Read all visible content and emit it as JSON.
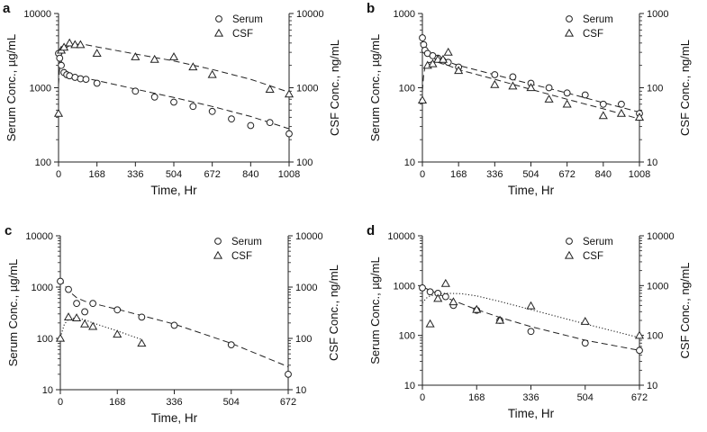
{
  "figure": {
    "panels": [
      "a",
      "b",
      "c",
      "d"
    ],
    "serum_marker": "circle",
    "csf_marker": "triangle",
    "line_color": "#222222"
  },
  "chart_data": [
    {
      "panel_label": "a",
      "type": "scatter",
      "xlabel": "Time, Hr",
      "ylabel_left": "Serum Conc., µg/mL",
      "ylabel_right": "CSF Conc., ng/mL",
      "xlim": [
        0,
        1008
      ],
      "xticks": [
        "0",
        "168",
        "336",
        "504",
        "672",
        "840",
        "1008"
      ],
      "ylim_left": [
        100,
        10000
      ],
      "yticks_left": [
        "100",
        "1000",
        "10000"
      ],
      "ylim_right": [
        100,
        10000
      ],
      "yticks_right": [
        "100",
        "1000",
        "10000"
      ],
      "legend": [
        "Serum",
        "CSF"
      ],
      "series": [
        {
          "name": "Serum",
          "marker": "circle",
          "axis": "left",
          "x": [
            0,
            5,
            12,
            24,
            36,
            48,
            72,
            96,
            120,
            168,
            336,
            420,
            504,
            588,
            672,
            756,
            840,
            924,
            1008
          ],
          "y": [
            2900,
            2500,
            2000,
            1600,
            1500,
            1450,
            1380,
            1320,
            1300,
            1150,
            900,
            750,
            640,
            560,
            480,
            380,
            310,
            340,
            240
          ]
        },
        {
          "name": "CSF",
          "marker": "triangle",
          "axis": "right",
          "x": [
            0,
            12,
            24,
            48,
            72,
            96,
            168,
            336,
            420,
            504,
            588,
            672,
            924,
            1008
          ],
          "y": [
            450,
            3200,
            3500,
            4000,
            3800,
            3800,
            2900,
            2600,
            2400,
            2600,
            1900,
            1500,
            950,
            820
          ]
        }
      ],
      "fits": [
        {
          "name": "Serum fit",
          "style": "dashed",
          "axis": "left",
          "x": [
            0,
            12,
            24,
            48,
            72,
            120,
            168,
            336,
            504,
            672,
            840,
            1008
          ],
          "y": [
            3200,
            2300,
            1800,
            1530,
            1440,
            1340,
            1250,
            960,
            740,
            560,
            410,
            280
          ]
        },
        {
          "name": "CSF fit",
          "style": "dashed",
          "axis": "right",
          "x": [
            0,
            8,
            24,
            48,
            72,
            96,
            120,
            168,
            336,
            504,
            672,
            840,
            1008
          ],
          "y": [
            1100,
            2600,
            3300,
            3700,
            3850,
            3850,
            3800,
            3550,
            2850,
            2300,
            1760,
            1300,
            870
          ]
        }
      ]
    },
    {
      "panel_label": "b",
      "type": "scatter",
      "xlabel": "Time, Hr",
      "ylabel_left": "Serum Conc., µg/mL",
      "ylabel_right": "CSF Conc., ng/mL",
      "xlim": [
        0,
        1008
      ],
      "xticks": [
        "0",
        "168",
        "336",
        "504",
        "672",
        "840",
        "1008"
      ],
      "ylim_left": [
        10,
        1000
      ],
      "yticks_left": [
        "10",
        "100",
        "1000"
      ],
      "ylim_right": [
        10,
        1000
      ],
      "yticks_right": [
        "10",
        "100",
        "1000"
      ],
      "legend": [
        "Serum",
        "CSF"
      ],
      "series": [
        {
          "name": "Serum",
          "marker": "circle",
          "axis": "left",
          "x": [
            0,
            6,
            12,
            24,
            48,
            72,
            96,
            120,
            168,
            336,
            420,
            504,
            588,
            672,
            756,
            840,
            924,
            1008
          ],
          "y": [
            470,
            380,
            320,
            290,
            270,
            250,
            230,
            220,
            190,
            150,
            140,
            115,
            100,
            85,
            80,
            60,
            60,
            45
          ]
        },
        {
          "name": "CSF",
          "marker": "triangle",
          "axis": "right",
          "x": [
            0,
            24,
            48,
            72,
            96,
            120,
            168,
            336,
            420,
            504,
            588,
            672,
            840,
            924,
            1008
          ],
          "y": [
            68,
            200,
            210,
            240,
            240,
            300,
            170,
            110,
            105,
            100,
            70,
            60,
            42,
            45,
            40
          ]
        }
      ],
      "fits": [
        {
          "name": "Serum fit",
          "style": "dashed",
          "axis": "left",
          "x": [
            0,
            12,
            24,
            48,
            96,
            168,
            336,
            504,
            672,
            840,
            1008
          ],
          "y": [
            420,
            330,
            290,
            260,
            235,
            200,
            150,
            112,
            85,
            63,
            47
          ]
        },
        {
          "name": "CSF fit",
          "style": "dashed",
          "axis": "right",
          "x": [
            0,
            6,
            12,
            24,
            48,
            72,
            120,
            168,
            336,
            504,
            672,
            840,
            1008
          ],
          "y": [
            90,
            150,
            190,
            215,
            225,
            220,
            200,
            175,
            130,
            95,
            70,
            52,
            38
          ]
        }
      ]
    },
    {
      "panel_label": "c",
      "type": "scatter",
      "xlabel": "Time, Hr",
      "ylabel_left": "Serum Conc., µg/mL",
      "ylabel_right": "CSF Conc., ng/mL",
      "xlim": [
        0,
        672
      ],
      "xticks": [
        "0",
        "168",
        "336",
        "504",
        "672"
      ],
      "ylim_left": [
        10,
        10000
      ],
      "yticks_left": [
        "10",
        "100",
        "1000",
        "10000"
      ],
      "ylim_right": [
        10,
        10000
      ],
      "yticks_right": [
        "10",
        "100",
        "1000",
        "10000"
      ],
      "legend": [
        "Serum",
        "CSF"
      ],
      "series": [
        {
          "name": "Serum",
          "marker": "circle",
          "axis": "left",
          "x": [
            0,
            24,
            48,
            72,
            96,
            168,
            240,
            336,
            504,
            672
          ],
          "y": [
            1300,
            900,
            480,
            330,
            480,
            360,
            260,
            180,
            75,
            20
          ]
        },
        {
          "name": "CSF",
          "marker": "triangle",
          "axis": "right",
          "x": [
            0,
            24,
            48,
            72,
            96,
            168,
            240
          ],
          "y": [
            100,
            260,
            250,
            190,
            170,
            120,
            80
          ]
        }
      ],
      "fits": [
        {
          "name": "Serum fit",
          "style": "dashed",
          "axis": "left",
          "x": [
            0,
            12,
            24,
            48,
            72,
            120,
            168,
            336,
            504,
            672
          ],
          "y": [
            1500,
            1100,
            850,
            620,
            530,
            440,
            370,
            190,
            80,
            28
          ]
        },
        {
          "name": "CSF fit",
          "style": "dotted",
          "axis": "right",
          "x": [
            0,
            12,
            24,
            48,
            72,
            96,
            168,
            240
          ],
          "y": [
            105,
            190,
            235,
            250,
            230,
            200,
            140,
            95
          ]
        }
      ]
    },
    {
      "panel_label": "d",
      "type": "scatter",
      "xlabel": "Time, Hr",
      "ylabel_left": "Serum Conc., µg/mL",
      "ylabel_right": "CSF Conc., ng/mL",
      "xlim": [
        0,
        672
      ],
      "xticks": [
        "0",
        "168",
        "336",
        "504",
        "672"
      ],
      "ylim_left": [
        10,
        10000
      ],
      "yticks_left": [
        "10",
        "100",
        "1000",
        "10000"
      ],
      "ylim_right": [
        10,
        10000
      ],
      "yticks_right": [
        "10",
        "100",
        "1000",
        "10000"
      ],
      "legend": [
        "Serum",
        "CSF"
      ],
      "series": [
        {
          "name": "Serum",
          "marker": "circle",
          "axis": "left",
          "x": [
            0,
            24,
            48,
            72,
            96,
            168,
            240,
            336,
            504,
            672
          ],
          "y": [
            900,
            750,
            700,
            600,
            400,
            320,
            200,
            120,
            70,
            50
          ]
        },
        {
          "name": "CSF",
          "marker": "triangle",
          "axis": "right",
          "x": [
            24,
            48,
            72,
            96,
            168,
            240,
            336,
            504,
            672
          ],
          "y": [
            170,
            550,
            1100,
            470,
            330,
            200,
            390,
            190,
            100
          ]
        }
      ],
      "fits": [
        {
          "name": "Serum fit",
          "style": "dashed",
          "axis": "left",
          "x": [
            0,
            24,
            48,
            72,
            96,
            168,
            240,
            336,
            504,
            672
          ],
          "y": [
            950,
            800,
            680,
            580,
            500,
            330,
            230,
            150,
            80,
            50
          ]
        },
        {
          "name": "CSF fit",
          "style": "dotted",
          "axis": "right",
          "x": [
            0,
            12,
            24,
            48,
            72,
            120,
            168,
            240,
            336,
            504,
            672
          ],
          "y": [
            450,
            560,
            620,
            680,
            700,
            690,
            620,
            480,
            330,
            170,
            90
          ]
        }
      ]
    }
  ]
}
